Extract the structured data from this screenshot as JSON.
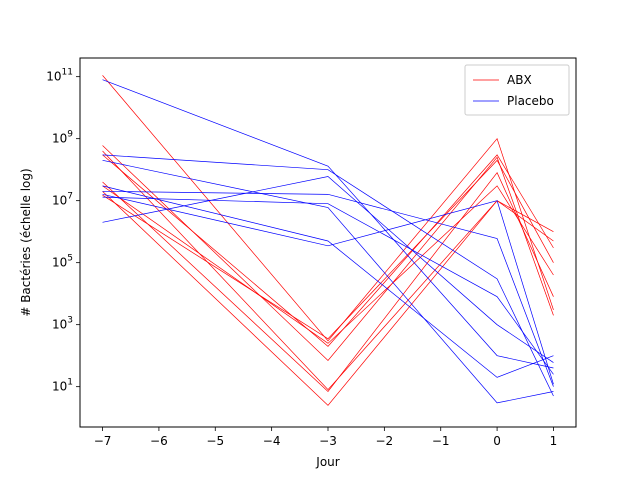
{
  "chart_data": {
    "type": "line",
    "title": "",
    "xlabel": "Jour",
    "ylabel": "# Bactéries (échelle log)",
    "yscale": "log",
    "xlim": [
      -7.4,
      1.4
    ],
    "ylim": [
      0.5,
      400000000000.0
    ],
    "grid": false,
    "legend_position": "top-right",
    "x": [
      -7,
      -3,
      0,
      1
    ],
    "x_ticks": [
      -7,
      -6,
      -5,
      -4,
      -3,
      -2,
      -1,
      0,
      1
    ],
    "x_tick_labels": [
      "−7",
      "−6",
      "−5",
      "−4",
      "−3",
      "−2",
      "−1",
      "0",
      "1"
    ],
    "y_ticks": [
      10,
      1000,
      100000,
      10000000,
      1000000000,
      100000000000
    ],
    "y_tick_bases": [
      "10",
      "10",
      "10",
      "10",
      "10",
      "10"
    ],
    "y_tick_exps": [
      "1",
      "3",
      "5",
      "7",
      "9",
      "11"
    ],
    "groups": [
      {
        "name": "ABX",
        "color": "#ff0000"
      },
      {
        "name": "Placebo",
        "color": "#0000ff"
      }
    ],
    "series": [
      {
        "group": "ABX",
        "values": [
          110000000000.0,
          300,
          1000000000.0,
          3000
        ]
      },
      {
        "group": "ABX",
        "values": [
          600000000.0,
          70,
          250000000.0,
          2000
        ]
      },
      {
        "group": "ABX",
        "values": [
          400000000.0,
          8,
          10000000.0,
          1000000.0
        ]
      },
      {
        "group": "ABX",
        "values": [
          300000000.0,
          200,
          300000000.0,
          300000.0
        ]
      },
      {
        "group": "ABX",
        "values": [
          40000000.0,
          7,
          80000000.0,
          8000
        ]
      },
      {
        "group": "ABX",
        "values": [
          30000000.0,
          250,
          30000000.0,
          40000.0
        ]
      },
      {
        "group": "ABX",
        "values": [
          20000000.0,
          2.5,
          10000000.0,
          500000.0
        ]
      },
      {
        "group": "ABX",
        "values": [
          15000000.0,
          350,
          200000000.0,
          100000.0
        ]
      },
      {
        "group": "Placebo",
        "values": [
          80000000000.0,
          130000000.0,
          100,
          40
        ]
      },
      {
        "group": "Placebo",
        "values": [
          300000000.0,
          100000000.0,
          30000.0,
          5
        ]
      },
      {
        "group": "Placebo",
        "values": [
          200000000.0,
          6000000.0,
          3,
          7
        ]
      },
      {
        "group": "Placebo",
        "values": [
          30000000.0,
          500000.0,
          20,
          100
        ]
      },
      {
        "group": "Placebo",
        "values": [
          20000000.0,
          16000000.0,
          600000.0,
          10
        ]
      },
      {
        "group": "Placebo",
        "values": [
          16000000.0,
          350000.0,
          10000000.0,
          12
        ]
      },
      {
        "group": "Placebo",
        "values": [
          13000000.0,
          8000000.0,
          8000,
          25
        ]
      },
      {
        "group": "Placebo",
        "values": [
          2000000.0,
          60000000.0,
          1000,
          60
        ]
      }
    ]
  }
}
